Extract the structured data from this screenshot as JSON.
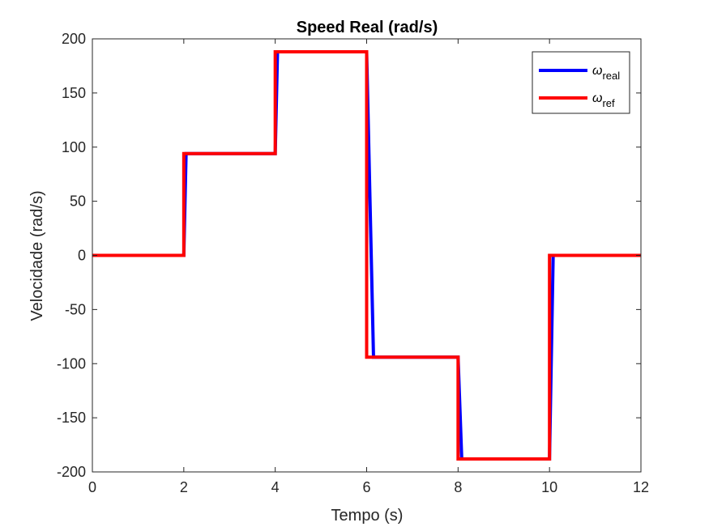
{
  "chart_data": {
    "type": "line",
    "title": "Speed Real (rad/s)",
    "xlabel": "Tempo (s)",
    "ylabel": "Velocidade (rad/s)",
    "xlim": [
      0,
      12
    ],
    "ylim": [
      -200,
      200
    ],
    "xticks": [
      0,
      2,
      4,
      6,
      8,
      10,
      12
    ],
    "yticks": [
      200,
      150,
      100,
      50,
      0,
      -50,
      -100,
      -150,
      -200
    ],
    "grid": false,
    "legend": {
      "placement": "top-right",
      "entries": [
        {
          "symbol": "ω",
          "subscript": "real"
        },
        {
          "symbol": "ω",
          "subscript": "ref"
        }
      ]
    },
    "series": [
      {
        "color": "#0000FF",
        "x": [
          0,
          2.0,
          2.05,
          4.0,
          4.05,
          6.0,
          6.15,
          8.0,
          8.08,
          10.0,
          10.08,
          12
        ],
        "y": [
          0,
          0,
          94,
          94,
          188,
          188,
          -94,
          -94,
          -188,
          -188,
          0,
          0
        ]
      },
      {
        "color": "#FF0000",
        "x": [
          0,
          2.0,
          2.0,
          4.0,
          4.0,
          6.0,
          6.0,
          8.0,
          8.0,
          10.0,
          10.0,
          12
        ],
        "y": [
          0,
          0,
          94,
          94,
          188,
          188,
          -94,
          -94,
          -188,
          -188,
          0,
          0
        ]
      }
    ]
  }
}
